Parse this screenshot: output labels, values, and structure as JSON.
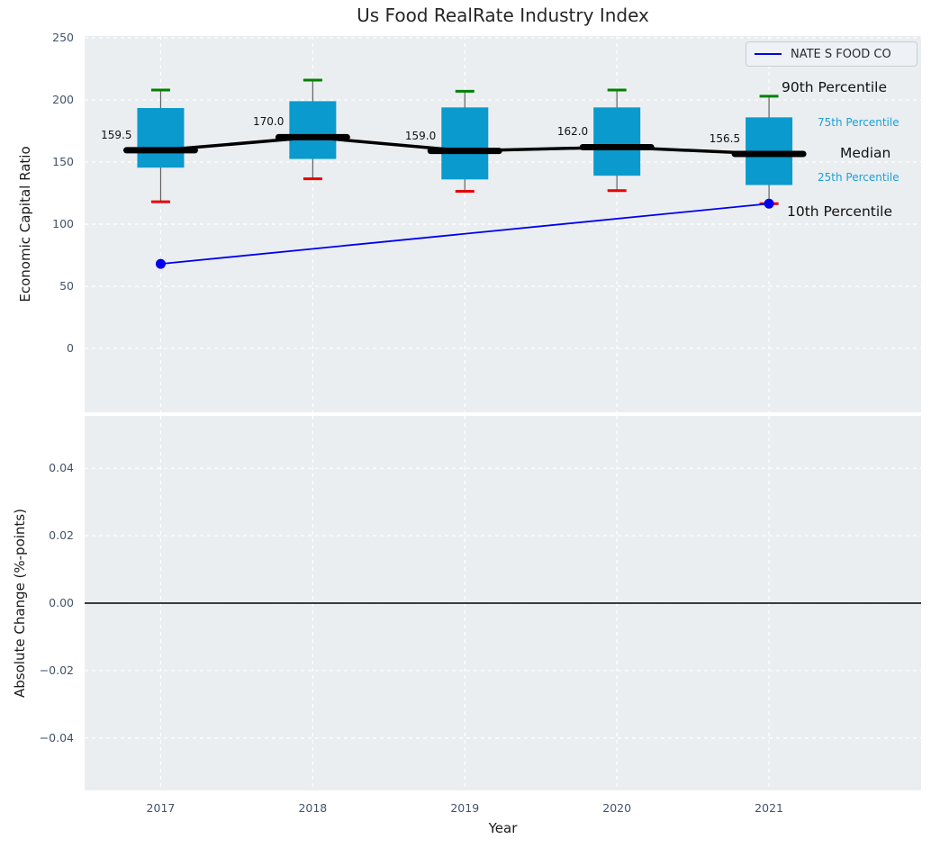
{
  "title": "Us Food RealRate Industry Index",
  "legend": {
    "label": "NATE S FOOD CO",
    "position": "upper right"
  },
  "annotations": {
    "p90": "90th Percentile",
    "p75": "75th Percentile",
    "median": "Median",
    "p25": "25th Percentile",
    "p10": "10th Percentile"
  },
  "colors": {
    "box_fill": "#0a9acd",
    "median_line": "#000000",
    "cap_90": "#008000",
    "cap_10": "#e60000",
    "whisker": "#616161",
    "series_line": "#0000ee",
    "grid": "#ffffff",
    "plot_bg": "#eaeef1",
    "tick_text": "#43536b",
    "percentile_small_text": "#1ea0d4",
    "zero_line": "#000000"
  },
  "chart_data": [
    {
      "type": "boxplot",
      "title": "Us Food RealRate Industry Index",
      "ylabel": "Economic Capital Ratio",
      "xlabel": "",
      "grid": true,
      "xlim": [
        2016.5,
        2022.0
      ],
      "ylim": [
        -51.5,
        251.5
      ],
      "yticks": [
        {
          "v": 250,
          "label": "250"
        },
        {
          "v": 200,
          "label": "200"
        },
        {
          "v": 150,
          "label": "150"
        },
        {
          "v": 100,
          "label": "100"
        },
        {
          "v": 50,
          "label": "50"
        },
        {
          "v": 0,
          "label": "0"
        }
      ],
      "categories": [
        "2017",
        "2018",
        "2019",
        "2020",
        "2021"
      ],
      "boxes": [
        {
          "year": 2017,
          "p10": 118,
          "q1": 145.5,
          "median": 159.5,
          "q3": 193.5,
          "p90": 208,
          "median_label": "159.5"
        },
        {
          "year": 2018,
          "p10": 136.5,
          "q1": 152.5,
          "median": 170.0,
          "q3": 199,
          "p90": 216,
          "median_label": "170.0"
        },
        {
          "year": 2019,
          "p10": 126.5,
          "q1": 136,
          "median": 159.0,
          "q3": 194,
          "p90": 207,
          "median_label": "159.0"
        },
        {
          "year": 2020,
          "p10": 127,
          "q1": 139,
          "median": 162.0,
          "q3": 194,
          "p90": 208,
          "median_label": "162.0"
        },
        {
          "year": 2021,
          "p10": 116.5,
          "q1": 131.5,
          "median": 156.5,
          "q3": 186,
          "p90": 203,
          "median_label": "156.5"
        }
      ],
      "series": [
        {
          "name": "NATE S FOOD CO",
          "color": "#0000ee",
          "points": [
            {
              "x": 2017,
              "y": 68
            },
            {
              "x": 2021,
              "y": 116.5
            }
          ]
        }
      ]
    },
    {
      "type": "line",
      "title": "",
      "ylabel": "Absolute Change (%-points)",
      "xlabel": "Year",
      "grid": true,
      "xlim": [
        2016.5,
        2022.0
      ],
      "ylim": [
        -0.0555,
        0.0555
      ],
      "zero_line": 0.0,
      "yticks": [
        {
          "v": 0.04,
          "label": "0.04"
        },
        {
          "v": 0.02,
          "label": "0.02"
        },
        {
          "v": 0.0,
          "label": "0.00"
        },
        {
          "v": -0.02,
          "label": "−0.02"
        },
        {
          "v": -0.04,
          "label": "−0.04"
        }
      ],
      "xticks": [
        {
          "v": 2017,
          "label": "2017"
        },
        {
          "v": 2018,
          "label": "2018"
        },
        {
          "v": 2019,
          "label": "2019"
        },
        {
          "v": 2020,
          "label": "2020"
        },
        {
          "v": 2021,
          "label": "2021"
        }
      ],
      "series": []
    }
  ]
}
